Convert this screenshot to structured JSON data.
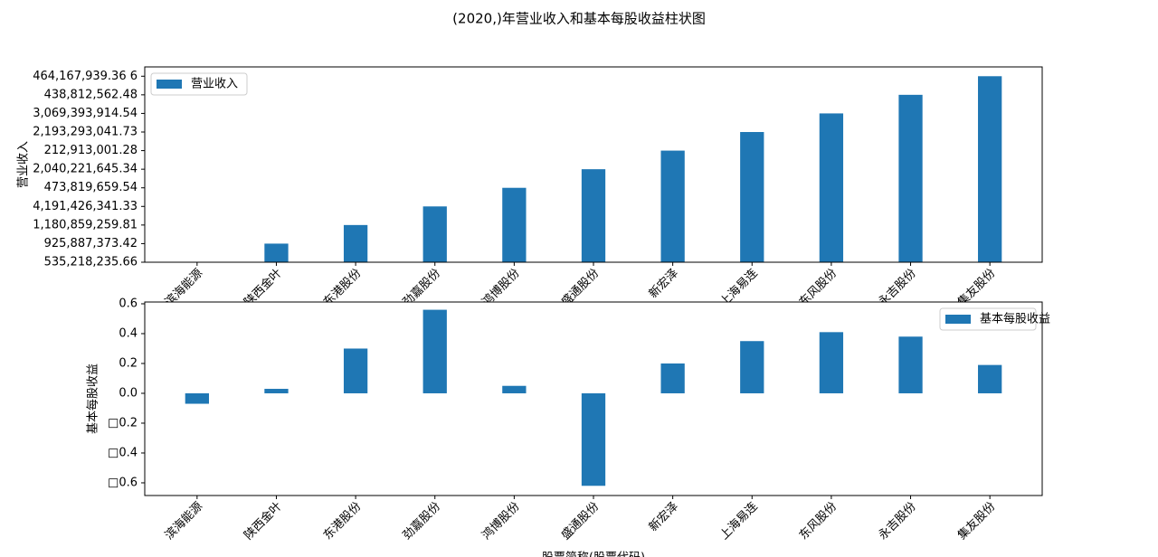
{
  "title": "(2020,)年营业收入和基本每股收益柱状图",
  "chart_data": [
    {
      "type": "bar",
      "ylabel": "营业收入",
      "legend": "upper left",
      "categories": [
        "滨海能源",
        "陕西金叶",
        "东港股份",
        "劲嘉股份",
        "鸿博股份",
        "盛通股份",
        "新宏泽",
        "上海易连",
        "东风股份",
        "永吉股份",
        "集友股份"
      ],
      "series": [
        {
          "name": "营业收入",
          "color": "#1f77b4",
          "values": [
            0,
            1,
            2,
            3,
            4,
            5,
            6,
            7,
            8,
            9,
            10
          ]
        }
      ],
      "ylim": [
        0,
        10.5
      ],
      "yticks": [
        {
          "value": 0,
          "label": "535,218,235.66"
        },
        {
          "value": 1,
          "label": "925,887,373.42"
        },
        {
          "value": 2,
          "label": "1,180,859,259.81"
        },
        {
          "value": 3,
          "label": "4,191,426,341.33"
        },
        {
          "value": 4,
          "label": "473,819,659.54"
        },
        {
          "value": 5,
          "label": "2,040,221,645.34"
        },
        {
          "value": 6,
          "label": "212,913,001.28"
        },
        {
          "value": 7,
          "label": "2,193,293,041.73"
        },
        {
          "value": 8,
          "label": "3,069,393,914.54"
        },
        {
          "value": 9,
          "label": "438,812,562.48"
        },
        {
          "value": 10,
          "label": "464,167,939.36 6"
        }
      ]
    },
    {
      "type": "bar",
      "ylabel": "基本每股收益",
      "xlabel": "股票简称(股票代码)",
      "legend": "upper right",
      "categories": [
        "滨海能源",
        "陕西金叶",
        "东港股份",
        "劲嘉股份",
        "鸿博股份",
        "盛通股份",
        "新宏泽",
        "上海易连",
        "东风股份",
        "永吉股份",
        "集友股份"
      ],
      "series": [
        {
          "name": "基本每股收益",
          "color": "#1f77b4",
          "values": [
            -0.07,
            0.03,
            0.3,
            0.56,
            0.05,
            -0.62,
            0.2,
            0.35,
            0.41,
            0.38,
            0.19
          ]
        }
      ],
      "ylim": [
        -0.685,
        0.612
      ],
      "yticks": [
        {
          "value": -0.6,
          "label": "□0.6"
        },
        {
          "value": -0.4,
          "label": "□0.4"
        },
        {
          "value": -0.2,
          "label": "□0.2"
        },
        {
          "value": 0,
          "label": "0.0"
        },
        {
          "value": 0.2,
          "label": "0.2"
        },
        {
          "value": 0.4,
          "label": "0.4"
        },
        {
          "value": 0.6,
          "label": "0.6"
        }
      ]
    }
  ]
}
